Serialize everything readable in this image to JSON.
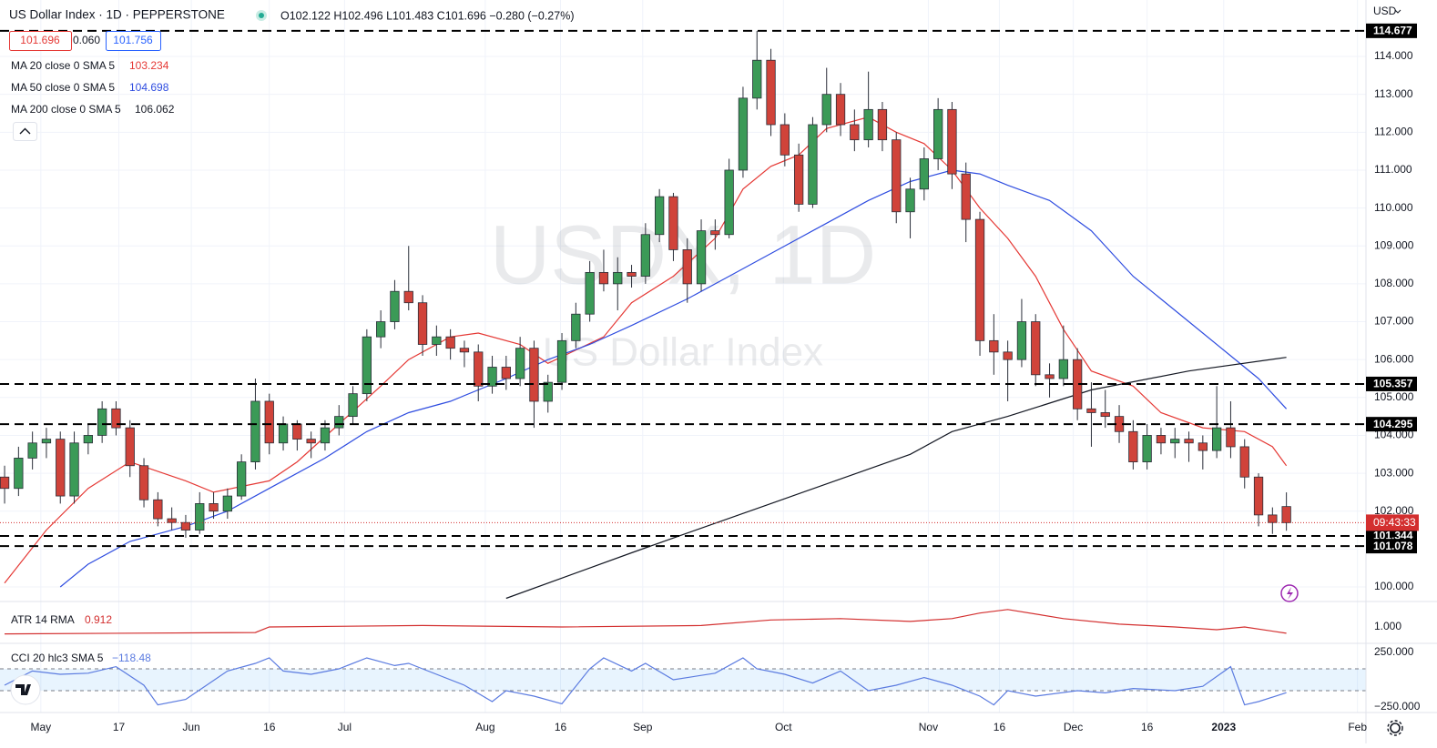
{
  "chart_data": {
    "type": "candlestick",
    "title": "US Dollar Index · 1D · PEPPERSTONE",
    "ohlc_text": "O102.122 H102.496 L101.483 C101.696 −0.280 (−0.27%)",
    "quote": {
      "bid": "101.696",
      "spread": "0.060",
      "ask": "101.756"
    },
    "currency": "USD",
    "watermark": "USDX, 1D",
    "watermark_sub": "US Dollar Index",
    "up_color": "#3b9a57",
    "down_color": "#d0433a",
    "grid": true,
    "xlim": [
      -0.33,
      97.71
    ],
    "xticks": [
      {
        "value": 2.6,
        "label": "May"
      },
      {
        "value": 8.2,
        "label": "17"
      },
      {
        "value": 13.4,
        "label": "Jun"
      },
      {
        "value": 19.0,
        "label": "16"
      },
      {
        "value": 24.4,
        "label": "Jul"
      },
      {
        "value": 34.5,
        "label": "Aug"
      },
      {
        "value": 39.9,
        "label": "16"
      },
      {
        "value": 45.8,
        "label": "Sep"
      },
      {
        "value": 55.9,
        "label": "Oct"
      },
      {
        "value": 66.3,
        "label": "Nov"
      },
      {
        "value": 71.4,
        "label": "16"
      },
      {
        "value": 76.7,
        "label": "Dec"
      },
      {
        "value": 82.0,
        "label": "16"
      },
      {
        "value": 87.5,
        "label": "2023"
      },
      {
        "value": 97.1,
        "label": "Feb"
      }
    ],
    "ylim": [
      99.64,
      115.49
    ],
    "yticks": [
      {
        "value": 100,
        "label": "100.000"
      },
      {
        "value": 101,
        "label": "101.000"
      },
      {
        "value": 102,
        "label": "102.000"
      },
      {
        "value": 103,
        "label": "103.000"
      },
      {
        "value": 104,
        "label": "104.000"
      },
      {
        "value": 105,
        "label": "105.000"
      },
      {
        "value": 106,
        "label": "106.000"
      },
      {
        "value": 107,
        "label": "107.000"
      },
      {
        "value": 108,
        "label": "108.000"
      },
      {
        "value": 109,
        "label": "109.000"
      },
      {
        "value": 110,
        "label": "110.000"
      },
      {
        "value": 111,
        "label": "111.000"
      },
      {
        "value": 112,
        "label": "112.000"
      },
      {
        "value": 113,
        "label": "113.000"
      },
      {
        "value": 114,
        "label": "114.000"
      }
    ],
    "candles": [
      [
        102.9,
        103.2,
        102.2,
        102.6
      ],
      [
        102.6,
        103.7,
        102.4,
        103.4
      ],
      [
        103.4,
        104.1,
        103.1,
        103.8
      ],
      [
        103.8,
        104.2,
        103.4,
        103.9
      ],
      [
        103.9,
        104.1,
        102.2,
        102.4
      ],
      [
        102.4,
        104.1,
        102.2,
        103.8
      ],
      [
        103.8,
        104.3,
        103.5,
        104.0
      ],
      [
        104.0,
        104.9,
        103.8,
        104.7
      ],
      [
        104.7,
        104.9,
        104.0,
        104.2
      ],
      [
        104.2,
        104.4,
        102.9,
        103.2
      ],
      [
        103.2,
        103.4,
        102.1,
        102.3
      ],
      [
        102.3,
        102.5,
        101.6,
        101.8
      ],
      [
        101.8,
        102.1,
        101.5,
        101.7
      ],
      [
        101.7,
        101.9,
        101.3,
        101.5
      ],
      [
        101.5,
        102.5,
        101.4,
        102.2
      ],
      [
        102.2,
        102.5,
        101.8,
        102.0
      ],
      [
        102.0,
        102.6,
        101.8,
        102.4
      ],
      [
        102.4,
        103.5,
        102.3,
        103.3
      ],
      [
        103.3,
        105.5,
        103.1,
        104.9
      ],
      [
        104.9,
        105.1,
        103.5,
        103.8
      ],
      [
        103.8,
        104.5,
        103.6,
        104.3
      ],
      [
        104.3,
        104.4,
        103.6,
        103.9
      ],
      [
        103.9,
        104.1,
        103.4,
        103.8
      ],
      [
        103.8,
        104.4,
        103.6,
        104.2
      ],
      [
        104.2,
        104.8,
        104.0,
        104.5
      ],
      [
        104.5,
        105.3,
        104.3,
        105.1
      ],
      [
        105.1,
        106.8,
        104.9,
        106.6
      ],
      [
        106.6,
        107.3,
        106.3,
        107.0
      ],
      [
        107.0,
        108.1,
        106.8,
        107.8
      ],
      [
        107.8,
        109.0,
        107.3,
        107.5
      ],
      [
        107.5,
        107.7,
        106.1,
        106.4
      ],
      [
        106.4,
        106.9,
        106.1,
        106.6
      ],
      [
        106.6,
        106.8,
        106.0,
        106.3
      ],
      [
        106.3,
        106.5,
        105.8,
        106.2
      ],
      [
        106.2,
        106.4,
        104.9,
        105.3
      ],
      [
        105.3,
        106.1,
        105.1,
        105.8
      ],
      [
        105.8,
        106.1,
        105.2,
        105.5
      ],
      [
        105.5,
        106.6,
        105.3,
        106.3
      ],
      [
        106.3,
        106.5,
        104.2,
        104.9
      ],
      [
        104.9,
        105.6,
        104.6,
        105.4
      ],
      [
        105.4,
        106.7,
        105.2,
        106.5
      ],
      [
        106.5,
        107.5,
        106.3,
        107.2
      ],
      [
        107.2,
        108.6,
        107.0,
        108.3
      ],
      [
        108.3,
        108.9,
        107.8,
        108.0
      ],
      [
        108.0,
        108.7,
        107.3,
        108.3
      ],
      [
        108.3,
        108.5,
        107.9,
        108.2
      ],
      [
        108.2,
        109.6,
        108.0,
        109.3
      ],
      [
        109.3,
        110.5,
        109.1,
        110.3
      ],
      [
        110.3,
        110.4,
        108.6,
        108.9
      ],
      [
        108.9,
        109.2,
        107.5,
        108.0
      ],
      [
        108.0,
        109.7,
        107.8,
        109.4
      ],
      [
        109.4,
        109.7,
        108.9,
        109.3
      ],
      [
        109.3,
        111.3,
        109.2,
        111.0
      ],
      [
        111.0,
        113.2,
        110.8,
        112.9
      ],
      [
        112.9,
        114.677,
        112.6,
        113.9
      ],
      [
        113.9,
        114.2,
        111.9,
        112.2
      ],
      [
        112.2,
        112.5,
        111.1,
        111.4
      ],
      [
        111.4,
        111.7,
        109.9,
        110.1
      ],
      [
        110.1,
        112.4,
        110.0,
        112.2
      ],
      [
        112.2,
        113.7,
        112.0,
        113.0
      ],
      [
        113.0,
        113.3,
        111.9,
        112.2
      ],
      [
        112.2,
        112.6,
        111.5,
        111.8
      ],
      [
        111.8,
        113.6,
        111.6,
        112.6
      ],
      [
        112.6,
        112.8,
        111.5,
        111.8
      ],
      [
        111.8,
        112.0,
        109.6,
        109.9
      ],
      [
        109.9,
        110.8,
        109.2,
        110.5
      ],
      [
        110.5,
        111.6,
        110.2,
        111.3
      ],
      [
        111.3,
        112.9,
        111.0,
        112.6
      ],
      [
        112.6,
        112.8,
        110.5,
        110.9
      ],
      [
        110.9,
        111.2,
        109.1,
        109.7
      ],
      [
        109.7,
        109.9,
        106.1,
        106.5
      ],
      [
        106.5,
        107.2,
        105.6,
        106.2
      ],
      [
        106.2,
        106.5,
        104.9,
        106.0
      ],
      [
        106.0,
        107.6,
        105.8,
        107.0
      ],
      [
        107.0,
        107.2,
        105.3,
        105.6
      ],
      [
        105.6,
        105.9,
        105.0,
        105.5
      ],
      [
        105.5,
        106.9,
        105.3,
        106.0
      ],
      [
        106.0,
        106.3,
        104.4,
        104.7
      ],
      [
        104.7,
        105.4,
        103.7,
        104.6
      ],
      [
        104.6,
        105.2,
        104.2,
        104.5
      ],
      [
        104.5,
        104.8,
        103.8,
        104.1
      ],
      [
        104.1,
        104.4,
        103.1,
        103.3
      ],
      [
        103.3,
        104.3,
        103.1,
        104.0
      ],
      [
        104.0,
        104.2,
        103.5,
        103.8
      ],
      [
        103.8,
        104.2,
        103.4,
        103.9
      ],
      [
        103.9,
        104.1,
        103.3,
        103.8
      ],
      [
        103.8,
        104.0,
        103.1,
        103.6
      ],
      [
        103.6,
        105.3,
        103.4,
        104.2
      ],
      [
        104.2,
        104.9,
        103.4,
        103.7
      ],
      [
        103.7,
        103.9,
        102.6,
        102.9
      ],
      [
        102.9,
        103.0,
        101.6,
        101.9
      ],
      [
        101.9,
        102.1,
        101.4,
        101.7
      ],
      [
        102.122,
        102.496,
        101.483,
        101.696
      ]
    ],
    "series": [
      {
        "name": "MA 20 close 0 SMA 5",
        "last": 103.234,
        "color": "#e53935",
        "x": [
          0,
          3,
          6,
          9,
          13,
          15,
          19,
          21,
          24,
          27,
          29,
          32,
          34,
          37,
          39,
          43,
          45,
          48,
          51,
          53,
          55,
          57,
          59,
          62,
          64,
          66,
          68,
          70,
          72,
          74,
          76,
          78,
          81,
          83,
          86,
          89,
          91,
          92
        ],
        "values": [
          100.1,
          101.5,
          102.6,
          103.3,
          102.8,
          102.5,
          102.8,
          103.3,
          104.3,
          105.3,
          106.0,
          106.6,
          106.7,
          106.4,
          105.9,
          106.6,
          107.5,
          108.2,
          109.2,
          110.5,
          111.1,
          111.4,
          112.1,
          112.4,
          112.0,
          111.7,
          111.0,
          110.0,
          109.2,
          108.2,
          106.8,
          105.7,
          105.3,
          104.6,
          104.2,
          104.1,
          103.7,
          103.2
        ]
      },
      {
        "name": "MA 50 close 0 SMA 5",
        "last": 104.698,
        "color": "#2f4de0",
        "x": [
          4,
          6,
          9,
          13,
          16,
          19,
          23,
          26,
          29,
          32,
          36,
          39,
          42,
          45,
          49,
          52,
          55,
          59,
          62,
          65,
          68,
          70,
          72,
          75,
          78,
          81,
          85,
          88,
          90,
          92
        ],
        "values": [
          100.0,
          100.6,
          101.2,
          101.6,
          102.0,
          102.6,
          103.4,
          104.1,
          104.6,
          104.9,
          105.5,
          106.0,
          106.4,
          106.9,
          107.6,
          108.2,
          108.8,
          109.6,
          110.2,
          110.7,
          111.0,
          110.9,
          110.6,
          110.2,
          109.4,
          108.2,
          107.0,
          106.1,
          105.5,
          104.7
        ]
      },
      {
        "name": "MA 200 close 0 SMA 5",
        "last": 106.062,
        "color": "#131722",
        "x": [
          36,
          45,
          55,
          65,
          68,
          72,
          78,
          85,
          92
        ],
        "values": [
          99.7,
          100.9,
          102.2,
          103.5,
          104.1,
          104.5,
          105.2,
          105.7,
          106.06
        ]
      }
    ],
    "levels": [
      114.677,
      105.357,
      104.295,
      101.344,
      101.078
    ],
    "last_price": 101.696,
    "countdown": "09:43:33",
    "indicators": [
      {
        "type": "line",
        "name": "ATR 14 RMA",
        "last": 0.912,
        "color": "#d32f2f",
        "ylim": [
          0.778,
          1.352
        ],
        "yticks": [
          {
            "value": 1,
            "label": "1.000"
          }
        ],
        "x": [
          0,
          18,
          19,
          30,
          40,
          50,
          55,
          60,
          65,
          68,
          70,
          72,
          76,
          80,
          84,
          87,
          89,
          92
        ],
        "values": [
          0.9,
          0.92,
          1.0,
          1.02,
          1.0,
          1.02,
          1.1,
          1.12,
          1.08,
          1.12,
          1.2,
          1.25,
          1.12,
          1.04,
          1.0,
          0.96,
          1.0,
          0.91
        ]
      },
      {
        "type": "line",
        "name": "CCI 20 hlc3 SMA 5",
        "last": -118.48,
        "last_label": "−118.48",
        "color": "#5b7be0",
        "ylim": [
          -291.7,
          325
        ],
        "yticks": [
          {
            "value": 250,
            "label": "250.000"
          },
          {
            "value": -250,
            "label": "−250.000"
          }
        ],
        "band": [
          -100,
          100
        ],
        "x": [
          0,
          2,
          4,
          6,
          8,
          10,
          11,
          13,
          16,
          18,
          19,
          20,
          22,
          24,
          26,
          28,
          29,
          30,
          33,
          35,
          36,
          38,
          40,
          42,
          43,
          45,
          46,
          48,
          51,
          53,
          54,
          56,
          58,
          60,
          62,
          64,
          66,
          68,
          70,
          71,
          72,
          74,
          77,
          79,
          81,
          84,
          86,
          88,
          89,
          90,
          92
        ],
        "values": [
          -50,
          80,
          50,
          60,
          120,
          -50,
          -230,
          -180,
          80,
          150,
          200,
          80,
          50,
          100,
          200,
          130,
          150,
          100,
          -50,
          -200,
          -100,
          -150,
          -220,
          100,
          200,
          80,
          150,
          0,
          60,
          200,
          100,
          50,
          -30,
          80,
          -100,
          -50,
          20,
          -50,
          -150,
          -230,
          -100,
          -150,
          -100,
          -120,
          -80,
          -100,
          -60,
          120,
          -230,
          -200,
          -118.48
        ]
      }
    ]
  }
}
